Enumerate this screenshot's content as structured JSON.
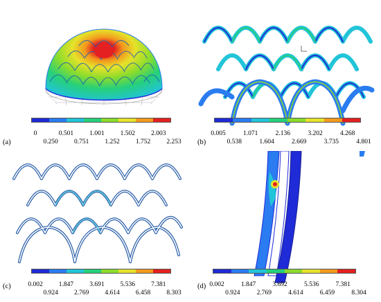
{
  "colormap": [
    "#1f2bd6",
    "#2a7cf0",
    "#22c4d8",
    "#26d07a",
    "#8bdc2c",
    "#e6e22a",
    "#f29a1e",
    "#e42020"
  ],
  "panels": [
    {
      "label": "(a)",
      "ticks_top": [
        "0",
        "0.501",
        "1.001",
        "1.502",
        "2.003"
      ],
      "ticks_bottom": [
        "0.250",
        "0.751",
        "1.252",
        "1.752",
        "2.253"
      ]
    },
    {
      "label": "(b)",
      "ticks_top": [
        "0.005",
        "1.071",
        "2.136",
        "3.202",
        "4.268"
      ],
      "ticks_bottom": [
        "0.538",
        "1.604",
        "2.669",
        "3.735",
        "4.801"
      ]
    },
    {
      "label": "(c)",
      "ticks_top": [
        "0.002",
        "1.847",
        "3.691",
        "5.536",
        "7.381"
      ],
      "ticks_bottom": [
        "0.924",
        "2.769",
        "4.614",
        "6.458",
        "8.303"
      ]
    },
    {
      "label": "(d)",
      "ticks_top": [
        "0.002",
        "1.847",
        "3.692",
        "5.536",
        "7.381"
      ],
      "ticks_bottom": [
        "0.924",
        "2.769",
        "4.614",
        "6.459",
        "8.304"
      ]
    }
  ]
}
